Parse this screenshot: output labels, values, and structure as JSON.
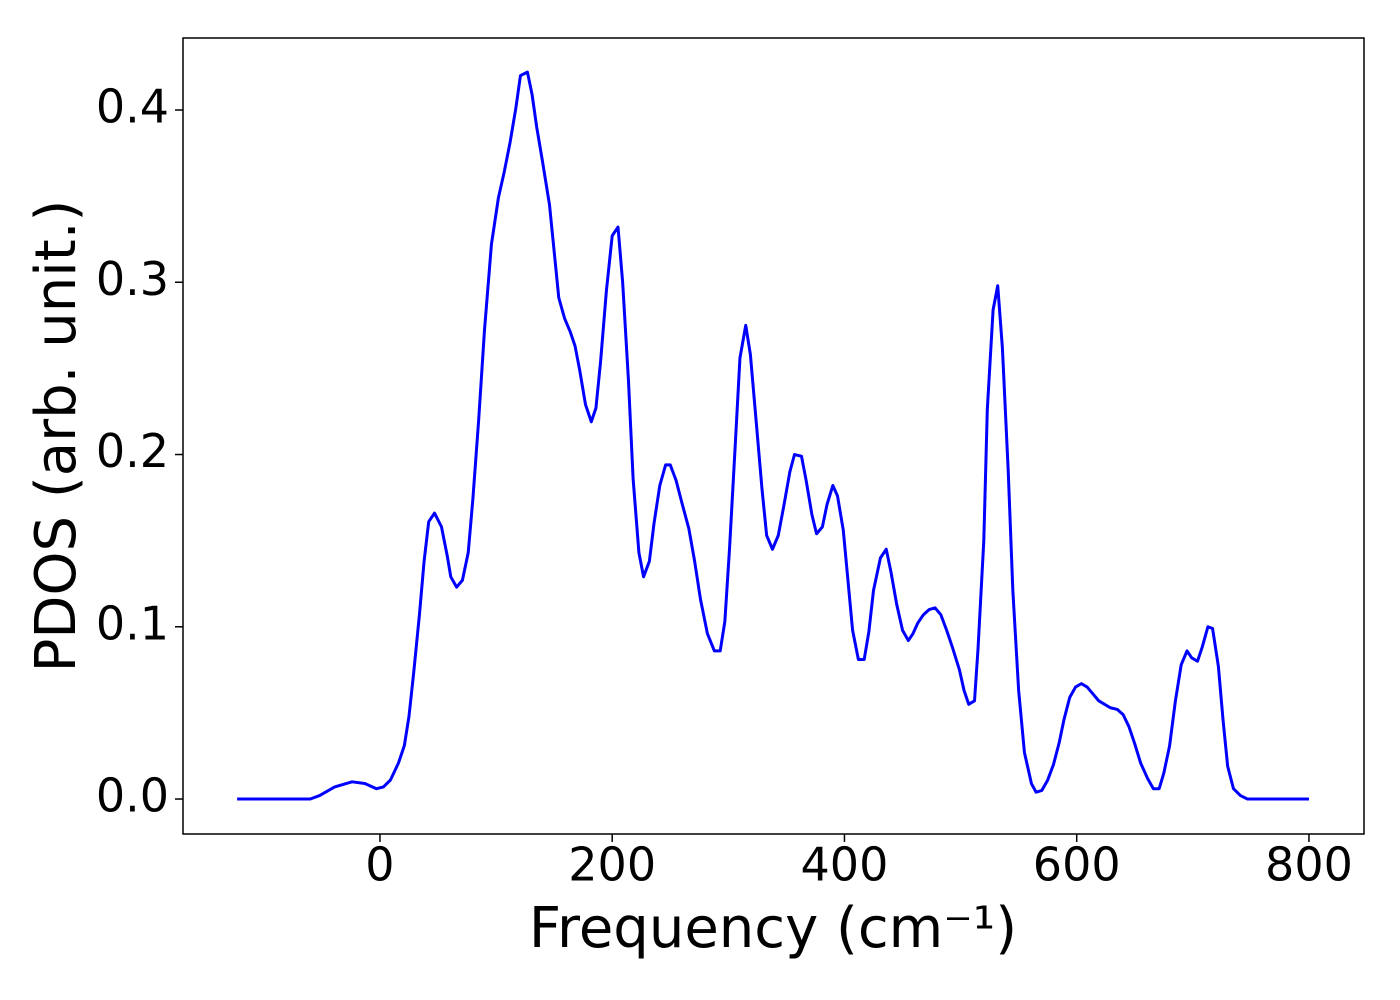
{
  "chart_data": {
    "type": "line",
    "xlabel": "Frequency (cm⁻¹)",
    "ylabel": "PDOS (arb. unit.)",
    "xlim": [
      -169.6,
      847.4
    ],
    "ylim": [
      -0.0203,
      0.4418
    ],
    "xticks": [
      0,
      200,
      400,
      600,
      800
    ],
    "yticks": [
      {
        "value": 0,
        "label": "0.0"
      },
      0.1,
      0.2,
      0.3,
      0.4
    ],
    "color": "#0000ff",
    "x": [
      -123,
      -60,
      -52,
      -39,
      -24,
      -13,
      -3,
      3,
      9,
      16,
      21,
      25,
      29,
      34,
      38,
      42,
      47,
      53,
      58,
      61,
      66,
      71,
      76,
      80,
      85,
      90,
      96,
      102,
      107,
      112,
      117,
      121,
      127,
      131,
      135,
      140,
      146,
      150,
      154,
      159,
      164,
      168,
      172,
      177,
      182,
      186,
      190,
      195,
      200,
      205,
      209,
      214,
      218,
      223,
      227,
      232,
      236,
      241,
      246,
      250,
      255,
      260,
      266,
      271,
      276,
      282,
      288,
      293,
      297,
      301,
      306,
      310,
      315,
      319,
      324,
      329,
      333,
      338,
      343,
      348,
      353,
      357,
      363,
      367,
      372,
      376,
      381,
      385,
      390,
      394,
      399,
      403,
      407,
      412,
      417,
      421,
      425,
      431,
      436,
      440,
      445,
      450,
      455,
      459,
      463,
      468,
      473,
      478,
      483,
      488,
      493,
      499,
      503,
      507,
      512,
      515,
      520,
      523,
      528,
      532,
      536,
      541,
      545,
      550,
      555,
      561,
      565,
      570,
      575,
      580,
      585,
      589,
      594,
      599,
      604,
      609,
      614,
      619,
      624,
      629,
      635,
      640,
      645,
      650,
      655,
      661,
      666,
      671,
      675,
      680,
      685,
      690,
      695,
      699,
      704,
      708,
      713,
      717,
      722,
      726,
      730,
      735,
      741,
      747,
      800
    ],
    "y": [
      0,
      0,
      0.002,
      0.007,
      0.01,
      0.009,
      0.006,
      0.007,
      0.011,
      0.021,
      0.031,
      0.048,
      0.073,
      0.107,
      0.138,
      0.161,
      0.166,
      0.158,
      0.141,
      0.129,
      0.123,
      0.127,
      0.143,
      0.174,
      0.22,
      0.272,
      0.322,
      0.349,
      0.364,
      0.381,
      0.401,
      0.42,
      0.422,
      0.409,
      0.39,
      0.37,
      0.345,
      0.318,
      0.291,
      0.279,
      0.271,
      0.263,
      0.249,
      0.229,
      0.219,
      0.227,
      0.254,
      0.295,
      0.327,
      0.332,
      0.3,
      0.243,
      0.186,
      0.143,
      0.129,
      0.138,
      0.16,
      0.182,
      0.194,
      0.194,
      0.185,
      0.172,
      0.157,
      0.138,
      0.116,
      0.096,
      0.086,
      0.086,
      0.103,
      0.145,
      0.206,
      0.256,
      0.275,
      0.258,
      0.219,
      0.18,
      0.153,
      0.145,
      0.153,
      0.171,
      0.19,
      0.2,
      0.199,
      0.185,
      0.165,
      0.154,
      0.158,
      0.171,
      0.182,
      0.176,
      0.156,
      0.127,
      0.098,
      0.081,
      0.081,
      0.097,
      0.121,
      0.14,
      0.145,
      0.132,
      0.113,
      0.098,
      0.092,
      0.096,
      0.102,
      0.107,
      0.11,
      0.111,
      0.107,
      0.098,
      0.088,
      0.075,
      0.063,
      0.055,
      0.057,
      0.087,
      0.15,
      0.226,
      0.284,
      0.298,
      0.262,
      0.191,
      0.121,
      0.063,
      0.027,
      0.009,
      0.004,
      0.005,
      0.011,
      0.02,
      0.033,
      0.046,
      0.059,
      0.065,
      0.067,
      0.065,
      0.061,
      0.057,
      0.055,
      0.053,
      0.052,
      0.049,
      0.042,
      0.032,
      0.021,
      0.012,
      0.006,
      0.006,
      0.015,
      0.031,
      0.057,
      0.078,
      0.086,
      0.082,
      0.08,
      0.088,
      0.1,
      0.099,
      0.077,
      0.046,
      0.019,
      0.006,
      0.002,
      0,
      0
    ]
  }
}
